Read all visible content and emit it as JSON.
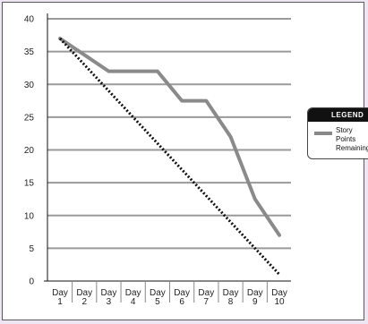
{
  "chart_data": {
    "type": "line",
    "title": "",
    "xlabel": "",
    "ylabel": "",
    "ylim": [
      0,
      40
    ],
    "yticks": [
      0,
      5,
      10,
      15,
      20,
      25,
      30,
      35,
      40
    ],
    "grid": true,
    "legend_placement": "right",
    "legend_title": "LEGEND",
    "categories": [
      "Day 1",
      "Day 2",
      "Day 3",
      "Day 4",
      "Day 5",
      "Day 6",
      "Day 7",
      "Day 8",
      "Day 9",
      "Day 10"
    ],
    "series": [
      {
        "name": "Story Points Remaining",
        "color": "#8a8a8a",
        "values": [
          37,
          34.5,
          32,
          32,
          32,
          27.5,
          27.5,
          22,
          12.5,
          7
        ]
      },
      {
        "color": "#111111",
        "style": "dotted",
        "values": [
          37,
          33,
          29,
          25,
          21,
          17,
          13,
          9,
          5,
          1
        ]
      }
    ]
  }
}
